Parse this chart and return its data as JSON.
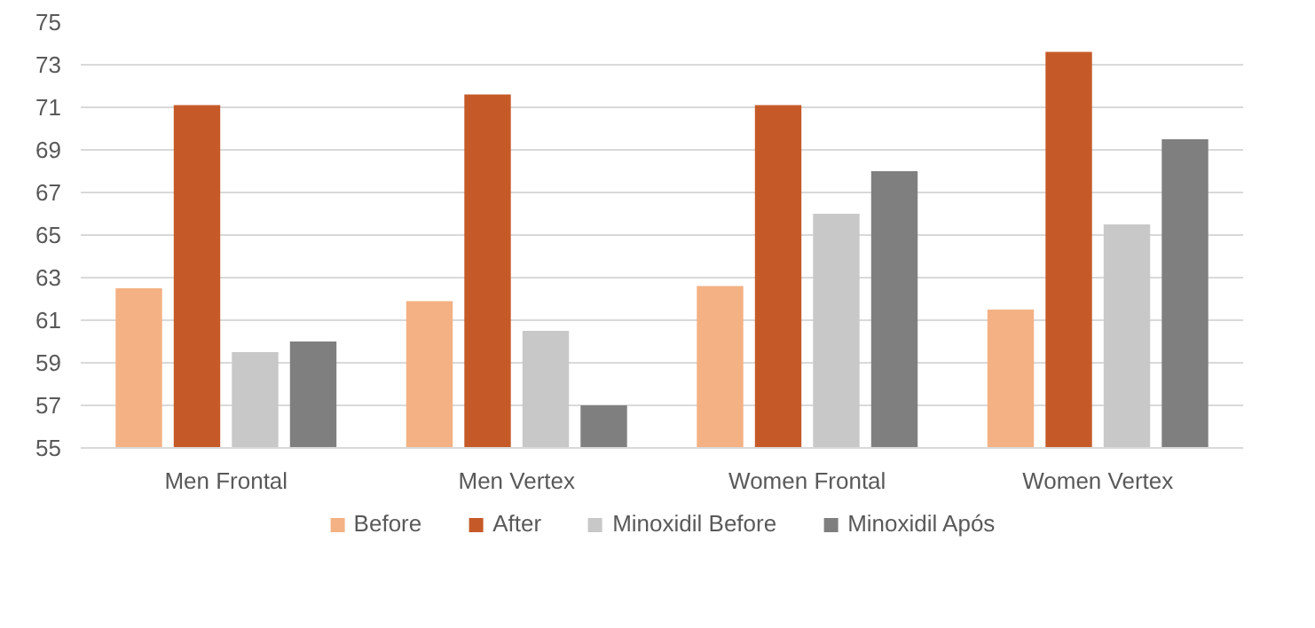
{
  "chart_data": {
    "type": "bar",
    "categories": [
      "Men Frontal",
      "Men Vertex",
      "Women Frontal",
      "Women Vertex"
    ],
    "series": [
      {
        "name": "Before",
        "color": "#f4b183",
        "values": [
          62.5,
          61.9,
          62.6,
          61.5
        ]
      },
      {
        "name": "After",
        "color": "#c55a28",
        "values": [
          71.1,
          71.6,
          71.1,
          73.6
        ]
      },
      {
        "name": "Minoxidil Before",
        "color": "#c8c8c8",
        "values": [
          59.5,
          60.5,
          66.0,
          65.5
        ]
      },
      {
        "name": "Minoxidil Após",
        "color": "#7f7f7f",
        "values": [
          60.0,
          57.0,
          68.0,
          69.5
        ]
      }
    ],
    "ylim": [
      55,
      75
    ],
    "yticks": [
      55,
      57,
      59,
      61,
      63,
      65,
      67,
      69,
      71,
      73,
      75
    ],
    "grid": "y",
    "legend": "bottom"
  }
}
